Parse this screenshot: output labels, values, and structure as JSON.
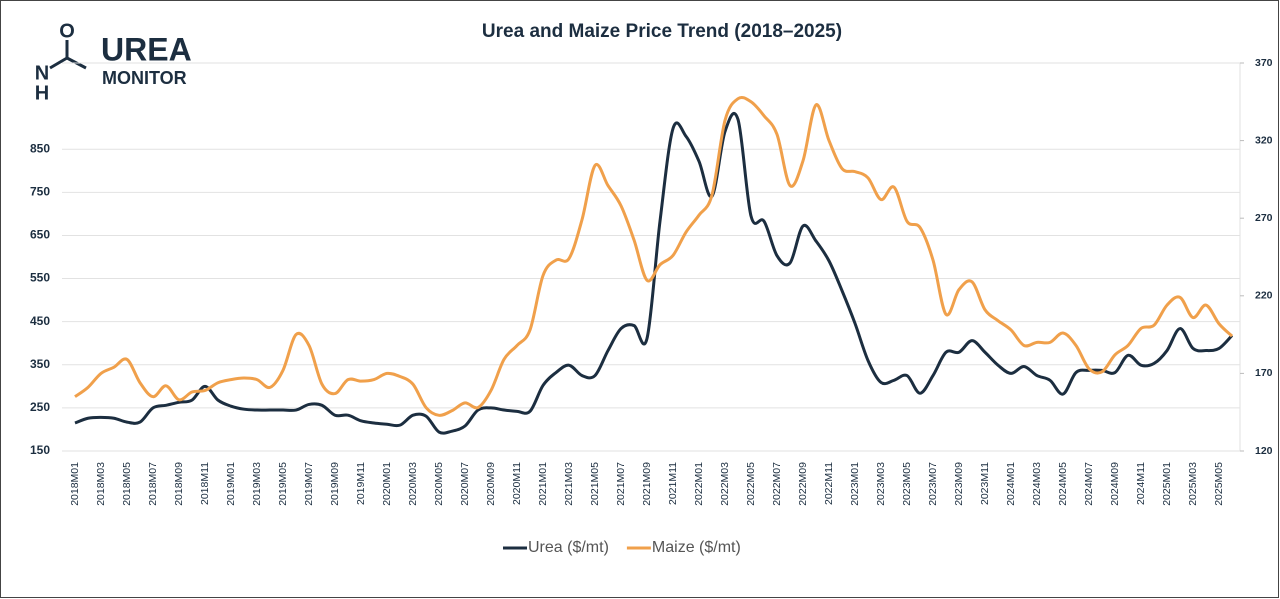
{
  "logo": {
    "atoms": [
      "O",
      "N",
      "H"
    ],
    "title": "UREA",
    "subtitle": "MONITOR"
  },
  "chart_data": {
    "type": "line",
    "title": "Urea and Maize Price Trend (2018–2025)",
    "categories": [
      "2018M01",
      null,
      "2018M03",
      null,
      "2018M05",
      null,
      "2018M07",
      null,
      "2018M09",
      null,
      "2018M11",
      null,
      "2019M01",
      null,
      "2019M03",
      null,
      "2019M05",
      null,
      "2019M07",
      null,
      "2019M09",
      null,
      "2019M11",
      null,
      "2020M01",
      null,
      "2020M03",
      null,
      "2020M05",
      null,
      "2020M07",
      null,
      "2020M09",
      null,
      "2020M11",
      null,
      "2021M01",
      null,
      "2021M03",
      null,
      "2021M05",
      null,
      "2021M07",
      null,
      "2021M09",
      null,
      "2021M11",
      null,
      "2022M01",
      null,
      "2022M03",
      null,
      "2022M05",
      null,
      "2022M07",
      null,
      "2022M09",
      null,
      "2022M11",
      null,
      "2023M01",
      null,
      "2023M03",
      null,
      "2023M05",
      null,
      "2023M07",
      null,
      "2023M09",
      null,
      "2023M11",
      null,
      "2024M01",
      null,
      "2024M03",
      null,
      "2024M05",
      null,
      "2024M07",
      null,
      "2024M09",
      null,
      "2024M11",
      null,
      "2025M01",
      null,
      "2025M03",
      null,
      "2025M05",
      null
    ],
    "series": [
      {
        "name": "Urea ($/mt)",
        "color": "#1c2e40",
        "axis": "y",
        "values": [
          215,
          226,
          228,
          226,
          217,
          217,
          250,
          256,
          263,
          268,
          300,
          268,
          254,
          247,
          245,
          245,
          245,
          245,
          258,
          256,
          233,
          233,
          220,
          215,
          212,
          210,
          233,
          231,
          194,
          196,
          208,
          245,
          250,
          245,
          242,
          242,
          302,
          332,
          349,
          325,
          325,
          383,
          434,
          441,
          411,
          683,
          898,
          880,
          822,
          741,
          891,
          919,
          695,
          683,
          603,
          586,
          672,
          637,
          591,
          522,
          446,
          360,
          309,
          314,
          325,
          284,
          325,
          379,
          379,
          406,
          379,
          349,
          330,
          346,
          325,
          314,
          282,
          332,
          337,
          337,
          332,
          372,
          349,
          353,
          383,
          434,
          388,
          383,
          388,
          418
        ]
      },
      {
        "name": "Maize ($/mt)",
        "color": "#f0a04b",
        "axis": "y2",
        "values": [
          155,
          161,
          170,
          174,
          179,
          164,
          155,
          162,
          153,
          158,
          159,
          164,
          166,
          167,
          166,
          161,
          172,
          195,
          188,
          163,
          157,
          166,
          165,
          166,
          170,
          168,
          163,
          148,
          143,
          146,
          151,
          148,
          159,
          179,
          188,
          198,
          233,
          243,
          244,
          269,
          304,
          291,
          278,
          256,
          230,
          240,
          246,
          261,
          272,
          285,
          333,
          347,
          345,
          336,
          324,
          291,
          307,
          343,
          320,
          302,
          300,
          296,
          282,
          290,
          268,
          264,
          243,
          208,
          224,
          229,
          211,
          204,
          198,
          188,
          190,
          190,
          196,
          188,
          173,
          171,
          182,
          188,
          199,
          201,
          214,
          219,
          206,
          214,
          202,
          194
        ]
      }
    ],
    "ylim": [
      150,
      1050
    ],
    "yticks": [
      150,
      250,
      350,
      450,
      550,
      650,
      750,
      850
    ],
    "y2lim": [
      120,
      370
    ],
    "y2ticks": [
      120,
      170,
      220,
      270,
      320,
      370
    ],
    "grid": true,
    "legend": "bottom"
  }
}
